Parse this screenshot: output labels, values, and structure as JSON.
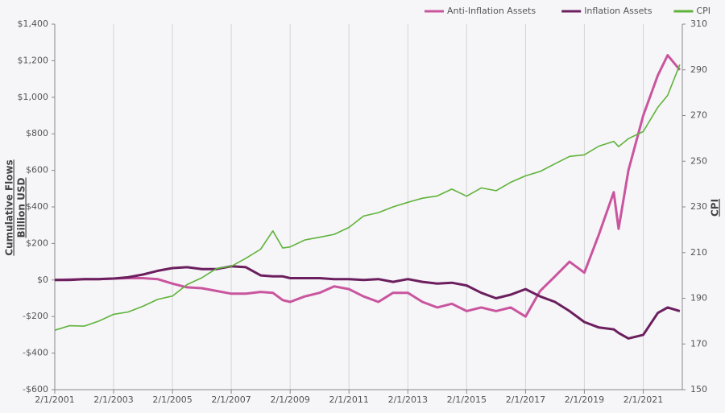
{
  "chart_data": {
    "type": "line",
    "ylabel": [
      "Cumulative Flows",
      "Billion USD"
    ],
    "y2label": "CPI",
    "x": [
      "2/1/2001",
      "8/1/2001",
      "2/1/2002",
      "8/1/2002",
      "2/1/2003",
      "8/1/2003",
      "2/1/2004",
      "8/1/2004",
      "2/1/2005",
      "8/1/2005",
      "2/1/2006",
      "8/1/2006",
      "2/1/2007",
      "8/1/2007",
      "2/1/2008",
      "7/1/2008",
      "11/1/2008",
      "2/1/2009",
      "8/1/2009",
      "2/1/2010",
      "8/1/2010",
      "2/1/2011",
      "8/1/2011",
      "2/1/2012",
      "8/1/2012",
      "2/1/2013",
      "8/1/2013",
      "2/1/2014",
      "8/1/2014",
      "2/1/2015",
      "8/1/2015",
      "2/1/2016",
      "8/1/2016",
      "2/1/2017",
      "8/1/2017",
      "2/1/2018",
      "8/1/2018",
      "2/1/2019",
      "8/1/2019",
      "2/1/2020",
      "4/1/2020",
      "8/1/2020",
      "2/1/2021",
      "8/1/2021",
      "12/1/2021",
      "5/1/2022"
    ],
    "series": [
      {
        "name": "Anti-Inflation Assets",
        "color": "#c9559e",
        "values": [
          0,
          2,
          5,
          5,
          8,
          10,
          10,
          5,
          -20,
          -40,
          -45,
          -60,
          -75,
          -75,
          -65,
          -70,
          -110,
          -120,
          -90,
          -70,
          -35,
          -50,
          -90,
          -120,
          -70,
          -70,
          -120,
          -150,
          -130,
          -170,
          -150,
          -170,
          -150,
          -200,
          -60,
          20,
          100,
          40,
          250,
          480,
          280,
          600,
          900,
          1120,
          1230,
          1150
        ]
      },
      {
        "name": "Inflation Assets",
        "color": "#6b1f5e",
        "values": [
          0,
          0,
          5,
          5,
          8,
          15,
          30,
          50,
          65,
          70,
          60,
          60,
          75,
          70,
          25,
          20,
          20,
          10,
          10,
          10,
          5,
          5,
          0,
          5,
          -10,
          5,
          -10,
          -20,
          -15,
          -30,
          -70,
          -100,
          -80,
          -50,
          -90,
          -120,
          -170,
          -230,
          -260,
          -270,
          -290,
          -320,
          -300,
          -180,
          -150,
          -170
        ]
      },
      {
        "name": "CPI",
        "color": "#5fb33a",
        "axis": "y2",
        "values": [
          176,
          178,
          177.8,
          180,
          183,
          184,
          186.5,
          189.5,
          191,
          196,
          199,
          203,
          204,
          207.5,
          211.5,
          219.5,
          212,
          212.5,
          215.5,
          216.7,
          218,
          221,
          226,
          227.5,
          230,
          232,
          233.8,
          234.8,
          237.8,
          234.7,
          238.3,
          237.1,
          240.8,
          243.6,
          245.5,
          248.9,
          252.1,
          252.8,
          256.6,
          258.7,
          256.4,
          259.9,
          263,
          273.6,
          278.8,
          292.3
        ]
      }
    ],
    "xlim": [
      "2/1/2001",
      "6/1/2022"
    ],
    "xticks": [
      "2/1/2001",
      "2/1/2003",
      "2/1/2005",
      "2/1/2007",
      "2/1/2009",
      "2/1/2011",
      "2/1/2013",
      "2/1/2015",
      "2/1/2017",
      "2/1/2019",
      "2/1/2021"
    ],
    "ylim": [
      -600,
      1400
    ],
    "yticks": [
      {
        "value": -600,
        "label": "-$600"
      },
      {
        "value": -400,
        "label": "-$400"
      },
      {
        "value": -200,
        "label": "-$200"
      },
      {
        "value": 0,
        "label": "$0"
      },
      {
        "value": 200,
        "label": "$200"
      },
      {
        "value": 400,
        "label": "$400"
      },
      {
        "value": 600,
        "label": "$600"
      },
      {
        "value": 800,
        "label": "$800"
      },
      {
        "value": 1000,
        "label": "$1,000"
      },
      {
        "value": 1200,
        "label": "$1,200"
      },
      {
        "value": 1400,
        "label": "$1,400"
      }
    ],
    "y2lim": [
      150,
      310
    ],
    "y2ticks": [
      150,
      170,
      190,
      210,
      230,
      250,
      270,
      290,
      310
    ],
    "grid": true,
    "legend": "top-right"
  }
}
